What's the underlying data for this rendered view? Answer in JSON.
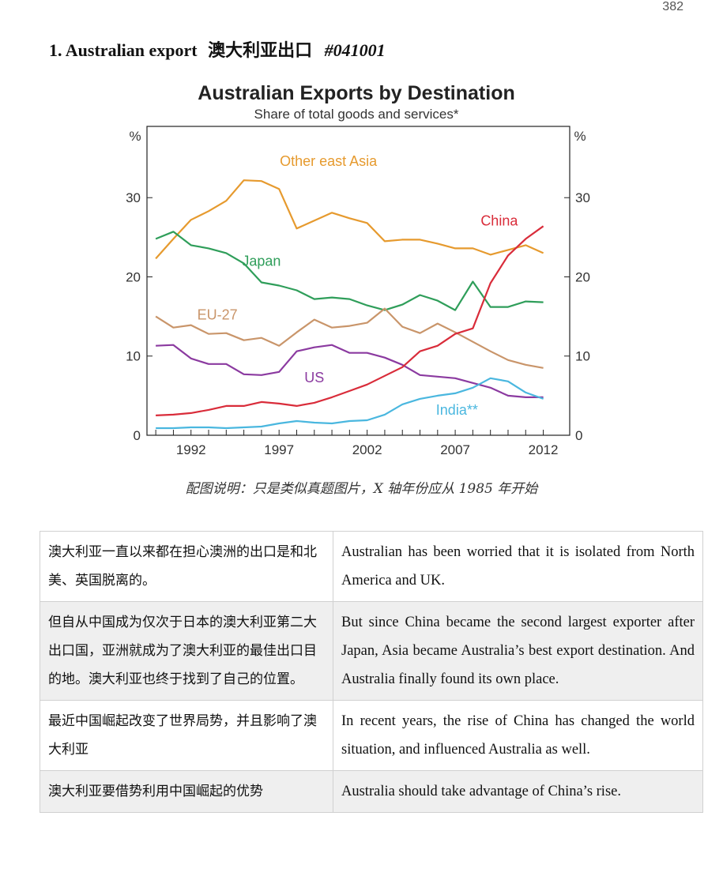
{
  "page_number": "382",
  "section": {
    "number": "1.",
    "title_en": "Australian export",
    "title_zh": "澳大利亚出口",
    "code": "#041001"
  },
  "chart_data": {
    "type": "line",
    "title": "Australian Exports by Destination",
    "subtitle": "Share of total goods and services*",
    "ylabel_left": "%",
    "ylabel_right": "%",
    "xlim": [
      1989.5,
      2013.5
    ],
    "ylim": [
      0,
      39
    ],
    "x_ticks": [
      1992,
      1997,
      2002,
      2007,
      2012
    ],
    "y_ticks": [
      0,
      10,
      20,
      30
    ],
    "grid": false,
    "x": [
      1990,
      1991,
      1992,
      1993,
      1994,
      1995,
      1996,
      1997,
      1998,
      1999,
      2000,
      2001,
      2002,
      2003,
      2004,
      2005,
      2006,
      2007,
      2008,
      2009,
      2010,
      2011,
      2012
    ],
    "series": [
      {
        "name": "Other east Asia",
        "color": "#e69a2e",
        "values": [
          22.3,
          24.8,
          27.2,
          28.3,
          29.6,
          32.2,
          32.1,
          31.1,
          26.1,
          27.1,
          28.1,
          27.4,
          26.8,
          24.5,
          24.7,
          24.7,
          24.2,
          23.6,
          23.6,
          22.8,
          23.4,
          24.0,
          23.0
        ]
      },
      {
        "name": "Japan",
        "color": "#2f9e5a",
        "values": [
          24.8,
          25.7,
          24.0,
          23.6,
          23.0,
          21.7,
          19.3,
          18.9,
          18.3,
          17.2,
          17.4,
          17.2,
          16.4,
          15.8,
          16.5,
          17.7,
          17.0,
          15.8,
          19.4,
          16.2,
          16.2,
          16.9,
          16.8
        ]
      },
      {
        "name": "EU-27",
        "color": "#c9956a",
        "values": [
          15.0,
          13.6,
          13.9,
          12.8,
          12.9,
          12.0,
          12.3,
          11.3,
          13.0,
          14.6,
          13.6,
          13.8,
          14.2,
          16.0,
          13.7,
          12.9,
          14.1,
          13.0,
          11.8,
          10.6,
          9.5,
          8.9,
          8.5
        ]
      },
      {
        "name": "US",
        "color": "#8b3aa0",
        "values": [
          11.3,
          11.4,
          9.7,
          9.0,
          9.0,
          7.7,
          7.6,
          8.0,
          10.6,
          11.1,
          11.4,
          10.4,
          10.4,
          9.8,
          8.9,
          7.6,
          7.4,
          7.2,
          6.6,
          6.0,
          5.0,
          4.8,
          4.8
        ]
      },
      {
        "name": "China",
        "color": "#d92c3a",
        "values": [
          2.5,
          2.6,
          2.8,
          3.2,
          3.7,
          3.7,
          4.2,
          4.0,
          3.7,
          4.1,
          4.8,
          5.6,
          6.4,
          7.5,
          8.6,
          10.6,
          11.3,
          12.8,
          13.5,
          19.2,
          22.7,
          24.8,
          26.4
        ]
      },
      {
        "name": "India**",
        "color": "#4ab7df",
        "values": [
          0.9,
          0.9,
          1.0,
          1.0,
          0.9,
          1.0,
          1.1,
          1.5,
          1.8,
          1.6,
          1.5,
          1.8,
          1.9,
          2.6,
          3.9,
          4.6,
          5.0,
          5.3,
          6.0,
          7.2,
          6.8,
          5.4,
          4.6
        ]
      }
    ]
  },
  "caption": "配图说明：只是类似真题图片，X 轴年份应从 1985 年开始",
  "table": {
    "rows": [
      {
        "zh": "澳大利亚一直以来都在担心澳洲的出口是和北美、英国脱离的。",
        "en": "Australian has been worried that it is isolated from North America and UK."
      },
      {
        "zh": "但自从中国成为仅次于日本的澳大利亚第二大出口国，亚洲就成为了澳大利亚的最佳出口目的地。澳大利亚也终于找到了自己的位置。",
        "en": "But since China became the second largest exporter after Japan, Asia became Australia’s best export destination. And Australia finally found its own place."
      },
      {
        "zh": "最近中国崛起改变了世界局势，并且影响了澳大利亚",
        "en": "In recent years, the rise of China has changed the world situation, and influenced Australia as well."
      },
      {
        "zh": "澳大利亚要借势利用中国崛起的优势",
        "en": "Australia should take advantage of China’s rise."
      }
    ]
  }
}
